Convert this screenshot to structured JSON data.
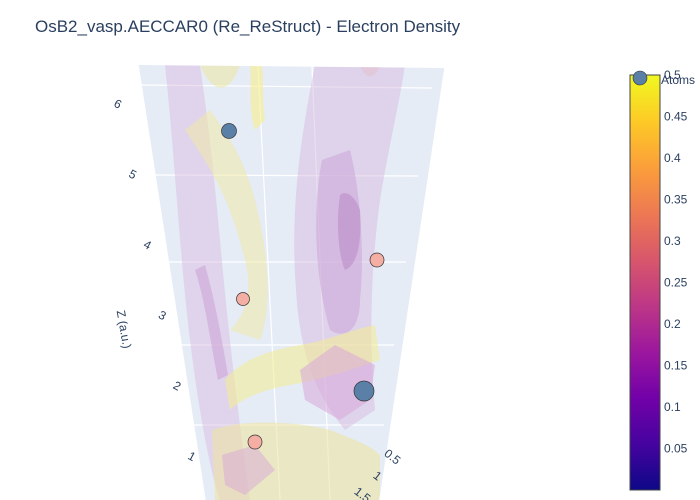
{
  "title": "OsB2_vasp.AECCAR0 (Re_ReStruct) - Electron Density",
  "colors": {
    "plot_bg": "#e5ecf6",
    "grid": "#ffffff",
    "text": "#2a3f5f",
    "atom_os": "#5b80a8",
    "atom_b": "#f4aea3"
  },
  "chart_data": {
    "type": "isosurface-3d",
    "title": "OsB2_vasp.AECCAR0 (Re_ReStruct) - Electron Density",
    "zaxis": {
      "label": "Z (a.u.)",
      "ticks": [
        "1",
        "2",
        "3",
        "4",
        "5",
        "6"
      ]
    },
    "yaxis": {
      "ticks": [
        "0.5",
        "1",
        "1.5"
      ]
    },
    "colorbar": {
      "min": 0,
      "max": 0.5,
      "ticks": [
        "0.05",
        "0.1",
        "0.15",
        "0.2",
        "0.25",
        "0.3",
        "0.35",
        "0.4",
        "0.45",
        "0.5"
      ],
      "colorscale": [
        "#0d0887",
        "#46039f",
        "#7201a8",
        "#9c179e",
        "#bd3786",
        "#d8576b",
        "#ed7953",
        "#fb9f3a",
        "#fdca26",
        "#f0f921"
      ]
    },
    "legend": {
      "entry": "Atoms",
      "placement": "top-right"
    },
    "atoms": [
      {
        "element": "Os",
        "z": 6.05
      },
      {
        "element": "B",
        "z": 3.95
      },
      {
        "element": "B",
        "z": 4.9
      },
      {
        "element": "Os",
        "z": 2.35
      },
      {
        "element": "B",
        "z": 1.4
      }
    ]
  }
}
